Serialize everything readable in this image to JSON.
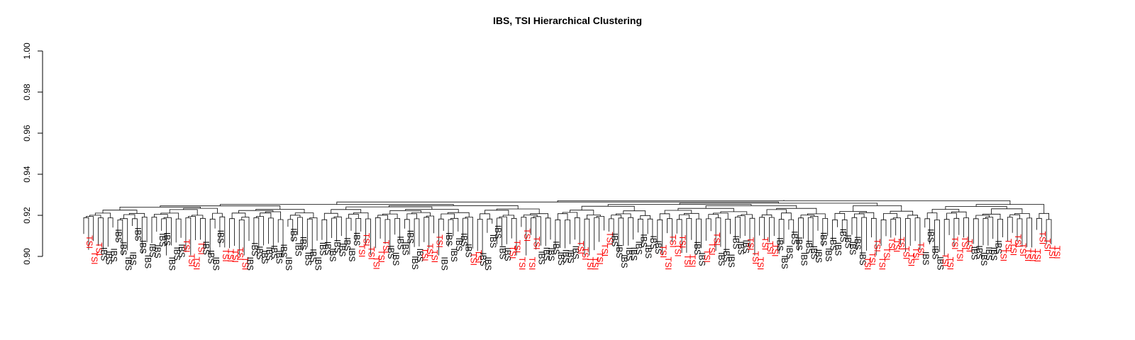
{
  "chart_data": {
    "type": "dendrogram",
    "title": "IBS, TSI Hierarchical Clustering",
    "xlabel": "",
    "ylabel": "",
    "ylim": [
      0.9,
      1.0
    ],
    "yticks": [
      "0.90",
      "0.92",
      "0.94",
      "0.96",
      "0.98",
      "1.00"
    ],
    "grid": false,
    "groups": [
      {
        "name": "IBS",
        "color": "#000000"
      },
      {
        "name": "TSI",
        "color": "#ff0000"
      }
    ],
    "root_height": 0.9275,
    "leaf_heights": [
      0.913,
      0.9115,
      0.907,
      0.9075,
      0.905,
      0.908,
      0.903,
      0.9,
      0.905,
      0.906
    ]
  }
}
